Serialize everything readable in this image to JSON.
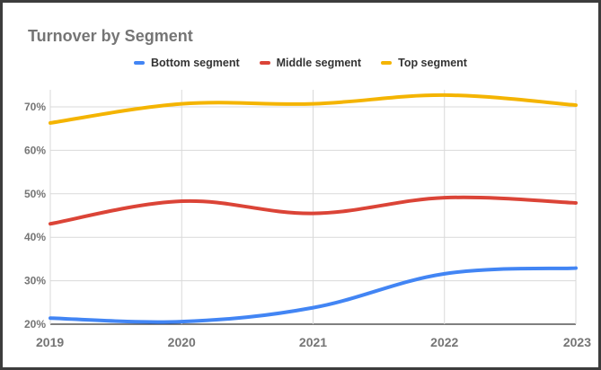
{
  "chart_data": {
    "type": "line",
    "title": "Turnover by Segment",
    "x": [
      "2019",
      "2020",
      "2021",
      "2022",
      "2023"
    ],
    "y_ticks": [
      "20%",
      "30%",
      "40%",
      "50%",
      "60%",
      "70%"
    ],
    "ylim": [
      20,
      73
    ],
    "grid": true,
    "legend_position": "top",
    "smooth": true,
    "series": [
      {
        "name": "Bottom segment",
        "color": "#4285f4",
        "values": [
          21.4,
          20.6,
          23.8,
          31.6,
          32.9
        ]
      },
      {
        "name": "Middle segment",
        "color": "#db4437",
        "values": [
          43.1,
          48.3,
          45.5,
          49.1,
          47.9
        ]
      },
      {
        "name": "Top segment",
        "color": "#f4b400",
        "values": [
          66.3,
          70.7,
          70.7,
          72.7,
          70.4
        ]
      }
    ]
  }
}
